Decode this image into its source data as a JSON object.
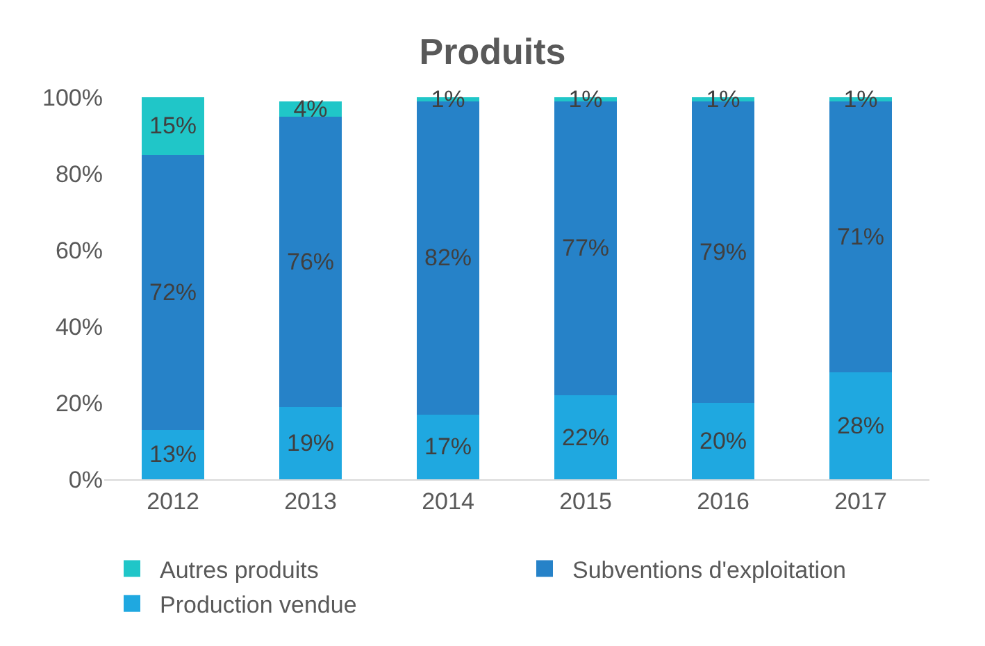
{
  "chart_data": {
    "type": "bar",
    "title": "Produits",
    "stacked": true,
    "categories": [
      "2012",
      "2013",
      "2014",
      "2015",
      "2016",
      "2017"
    ],
    "series": [
      {
        "name": "Production vendue",
        "color": "#1fa8e0",
        "values": [
          13,
          19,
          17,
          22,
          20,
          28
        ],
        "value_labels": [
          "13%",
          "19%",
          "17%",
          "22%",
          "20%",
          "28%"
        ]
      },
      {
        "name": "Subventions d'exploitation",
        "color": "#2682c8",
        "values": [
          72,
          76,
          82,
          77,
          79,
          71
        ],
        "value_labels": [
          "72%",
          "76%",
          "82%",
          "77%",
          "79%",
          "71%"
        ]
      },
      {
        "name": "Autres produits",
        "color": "#20c6c8",
        "values": [
          15,
          4,
          1,
          1,
          1,
          1
        ],
        "value_labels": [
          "15%",
          "4%",
          "1%",
          "1%",
          "1%",
          "1%"
        ]
      }
    ],
    "ylim": [
      0,
      100
    ],
    "yticks": [
      {
        "value": 0,
        "label": "0%"
      },
      {
        "value": 20,
        "label": "20%"
      },
      {
        "value": 40,
        "label": "40%"
      },
      {
        "value": 60,
        "label": "60%"
      },
      {
        "value": 80,
        "label": "80%"
      },
      {
        "value": 100,
        "label": "100%"
      }
    ],
    "grid": false,
    "legend": "bottom"
  }
}
